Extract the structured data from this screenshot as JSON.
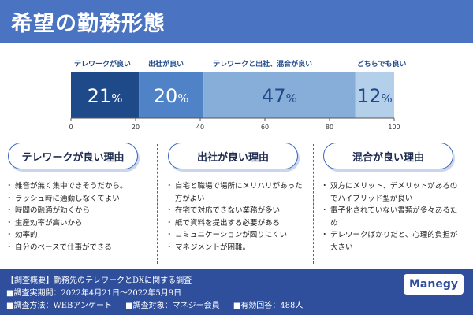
{
  "header": {
    "title": "希望の勤務形態"
  },
  "chart_data": {
    "type": "bar",
    "orientation": "horizontal-stacked",
    "title": "希望の勤務形態",
    "categories": [
      "テレワークが良い",
      "出社が良い",
      "テレワークと出社、混合が良い",
      "どちらでも良い"
    ],
    "values": [
      21,
      20,
      47,
      12
    ],
    "value_labels": [
      "21",
      "20",
      "47",
      "12"
    ],
    "unit": "%",
    "colors": [
      "#1f4a8a",
      "#4f82c6",
      "#86aed8",
      "#b3cfea"
    ],
    "xlim": [
      0,
      100
    ],
    "xticks": [
      0,
      20,
      40,
      60,
      80,
      100
    ]
  },
  "columns": [
    {
      "heading": "テレワークが良い理由",
      "items": [
        "雑音が無く集中できそうだから。",
        "ラッシュ時に通勤しなくてよい",
        "時間の融通が効くから",
        "生産効率が高いから",
        "効率的",
        "自分のペースで仕事ができる"
      ]
    },
    {
      "heading": "出社が良い理由",
      "items": [
        "自宅と職場で場所にメリハリがあった方がよい",
        "在宅で対応できない業務が多い",
        "紙で資料を提出する必要がある",
        "コミュニケーションが図りにくい",
        "マネジメントが困難。"
      ]
    },
    {
      "heading": "混合が良い理由",
      "items": [
        "双方にメリット、デメリットがあるのでハイブリッド型が良い",
        "電子化されていない書類が多々あるため",
        "テレワークばかりだと、心理的負担が大きい"
      ]
    }
  ],
  "footer": {
    "overview": "【調査概要】勤務先のテレワークとDXに関する調査",
    "period": "■調査実期間：2022年4月21日～2022年5月9日",
    "method": "■調査方法：WEBアンケート",
    "target": "■調査対象：マネジー会員",
    "responses": "■有効回答：488人",
    "logo": "Manegy"
  }
}
